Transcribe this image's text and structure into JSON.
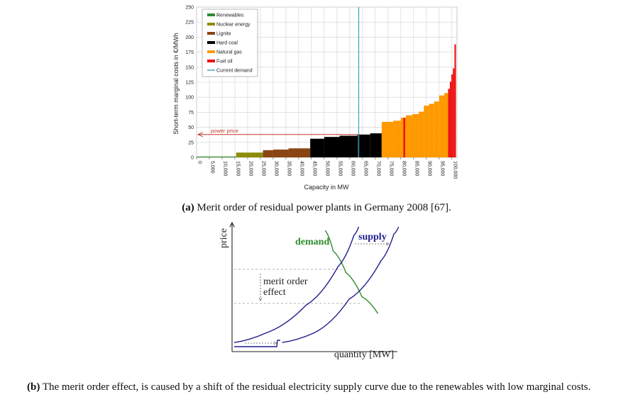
{
  "chart_data": [
    {
      "type": "bar",
      "ylabel": "Short-term marginal costs in €/MWh",
      "xlabel": "Capacity in MW",
      "ylim": [
        0,
        250
      ],
      "xlim": [
        0,
        102000
      ],
      "yticks": [
        0,
        25,
        50,
        75,
        100,
        125,
        150,
        175,
        200,
        225,
        250
      ],
      "xticks": [
        0,
        5000,
        10000,
        15000,
        20000,
        25000,
        30000,
        35000,
        40000,
        45000,
        50000,
        55000,
        60000,
        65000,
        70000,
        75000,
        80000,
        85000,
        90000,
        95000,
        100000
      ],
      "xtick_labels": [
        "0",
        "5,000",
        "10,000",
        "15,000",
        "20,000",
        "25,000",
        "30,000",
        "35,000",
        "40,000",
        "45,000",
        "50,000",
        "55,000",
        "60,000",
        "65,000",
        "70,000",
        "75,000",
        "80,000",
        "85,000",
        "90,000",
        "95,000",
        "100,000"
      ],
      "grid": true,
      "legend_position": "top-left",
      "series": [
        {
          "name": "Renewables",
          "color": "#2e8b2e",
          "blocks": [
            [
              0,
              15500,
              1
            ]
          ]
        },
        {
          "name": "Nuclear energy",
          "color": "#8c8c0a",
          "blocks": [
            [
              15500,
              26000,
              8
            ]
          ]
        },
        {
          "name": "Lignite",
          "color": "#8b4513",
          "blocks": [
            [
              26000,
              30000,
              12
            ],
            [
              30000,
              36000,
              13
            ],
            [
              36000,
              44500,
              15
            ]
          ]
        },
        {
          "name": "Hard coal",
          "color": "#000000",
          "blocks": [
            [
              44500,
              50000,
              31
            ],
            [
              50000,
              56000,
              34
            ],
            [
              56000,
              63000,
              36
            ],
            [
              63000,
              68000,
              38
            ],
            [
              68000,
              72500,
              40
            ]
          ]
        },
        {
          "name": "Natural gas",
          "color": "#ff9900",
          "blocks": [
            [
              72500,
              77000,
              59
            ],
            [
              77000,
              80000,
              61
            ],
            [
              80000,
              82000,
              66
            ],
            [
              82000,
              84500,
              70
            ],
            [
              84500,
              87000,
              72
            ],
            [
              87000,
              89000,
              76
            ],
            [
              89000,
              91000,
              86
            ],
            [
              91000,
              93000,
              89
            ],
            [
              93000,
              95000,
              93
            ],
            [
              95000,
              97000,
              103
            ],
            [
              97000,
              98500,
              107
            ]
          ]
        },
        {
          "name": "Fuel oil",
          "color": "#ee1111",
          "blocks": [
            [
              81000,
              81700,
              66
            ],
            [
              98500,
              99200,
              114
            ],
            [
              99200,
              99800,
              126
            ],
            [
              99800,
              100400,
              138
            ],
            [
              100400,
              101000,
              148
            ],
            [
              101000,
              101600,
              188
            ]
          ]
        }
      ],
      "current_demand": {
        "name": "Current demand",
        "color": "#3fa7c9",
        "x": 63500
      },
      "power_price": {
        "label": "power price",
        "value": 38,
        "color": "#c0392b"
      }
    },
    {
      "type": "line",
      "xlabel": "quantity [MW]",
      "ylabel": "price",
      "labels": {
        "demand": "demand",
        "supply": "supply",
        "effect": "merit order\neffect"
      },
      "colors": {
        "demand": "#2e8b2e",
        "supply": "#1f1f8f"
      },
      "series": [
        {
          "name": "demand",
          "x": [
            0.57,
            0.62,
            0.7,
            0.8,
            0.9
          ],
          "y": [
            0.97,
            0.8,
            0.62,
            0.42,
            0.28
          ]
        },
        {
          "name": "supply",
          "x": [
            0.0,
            0.2,
            0.45,
            0.65,
            0.75,
            0.78
          ],
          "y": [
            0.04,
            0.12,
            0.35,
            0.67,
            0.93,
            1.0
          ]
        },
        {
          "name": "supply",
          "x": [
            0.3,
            0.5,
            0.72,
            0.92,
            1.0,
            1.03
          ],
          "y": [
            0.04,
            0.12,
            0.4,
            0.72,
            0.94,
            1.0
          ]
        }
      ]
    }
  ],
  "captions": {
    "a_label": "(a)",
    "a_text": " Merit order of residual power plants in Germany 2008 [67].",
    "b_label": "(b)",
    "b_text": " The merit order effect, is caused by a shift of the residual electricity supply curve due to the renewables with low marginal costs."
  }
}
